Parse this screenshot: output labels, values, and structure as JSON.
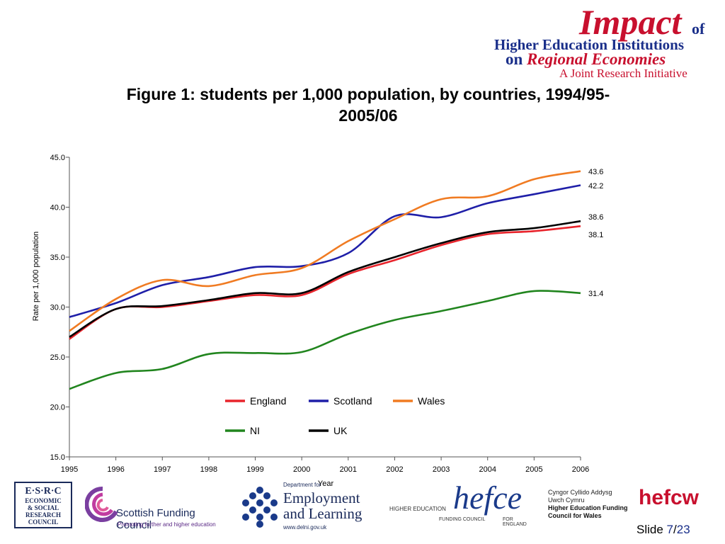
{
  "logo": {
    "main": "Impact",
    "of": "of",
    "line2": "Higher Education Institutions",
    "line3_prefix": "on",
    "line3_main": "Regional Economies",
    "line4": "A Joint Research Initiative"
  },
  "slide": {
    "label": "Slide",
    "current": "7",
    "total": "23",
    "sep": "/"
  },
  "partners": {
    "esrc": [
      "E·S·R·C",
      "ECONOMIC",
      "& SOCIAL",
      "RESEARCH",
      "COUNCIL"
    ],
    "sfc_name": "Scottish Funding Council",
    "sfc_tag": "Promoting further and higher education",
    "del_dept": "Department for",
    "del_name1": "Employment",
    "del_name2": "and Learning",
    "del_url": "www.delni.gov.uk",
    "hefce": "hefce",
    "hefce_s1": "HIGHER EDUCATION",
    "hefce_s2": "FUNDING COUNCIL",
    "hefce_s3": "FOR ENGLAND",
    "hefcw_l1": "Cyngor Cyllido Addysg",
    "hefcw_l2": "Uwch Cymru",
    "hefcw_l3": "Higher Education Funding",
    "hefcw_l4": "Council for Wales",
    "hefcw": "hefcw"
  },
  "chart_data": {
    "type": "line",
    "title": "Figure 1: students per 1,000 population, by countries, 1994/95-2005/06",
    "title_line1": "Figure 1: students per 1,000 population, by countries, 1994/95-",
    "title_line2": "2005/06",
    "xlabel": "Year",
    "ylabel": "Rate per 1,000 population",
    "x": [
      1995,
      1996,
      1997,
      1998,
      1999,
      2000,
      2001,
      2002,
      2003,
      2004,
      2005,
      2006
    ],
    "x_tick_labels": [
      "1995",
      "1996",
      "1997",
      "1998",
      "1999",
      "2000",
      "2001",
      "2002",
      "2003",
      "2004",
      "2005",
      "2006"
    ],
    "ylim": [
      15.0,
      45.0
    ],
    "y_ticks": [
      15.0,
      20.0,
      25.0,
      30.0,
      35.0,
      40.0,
      45.0
    ],
    "y_tick_labels": [
      "15.0",
      "20.0",
      "25.0",
      "30.0",
      "35.0",
      "40.0",
      "45.0"
    ],
    "grid": false,
    "legend_position": "bottom-center",
    "series": [
      {
        "name": "England",
        "color": "#e8242c",
        "values": [
          26.8,
          29.8,
          30.0,
          30.6,
          31.2,
          31.2,
          33.3,
          34.7,
          36.2,
          37.3,
          37.6,
          38.1
        ],
        "end_label": "38.1"
      },
      {
        "name": "Scotland",
        "color": "#1f1fa8",
        "values": [
          29.0,
          30.4,
          32.2,
          33.0,
          34.0,
          34.1,
          35.4,
          39.1,
          39.0,
          40.4,
          41.3,
          42.2
        ],
        "end_label": "42.2"
      },
      {
        "name": "Wales",
        "color": "#f07b22",
        "values": [
          27.6,
          30.8,
          32.7,
          32.1,
          33.2,
          33.9,
          36.6,
          38.8,
          40.8,
          41.1,
          42.8,
          43.6
        ],
        "end_label": "43.6"
      },
      {
        "name": "NI",
        "color": "#21851e",
        "values": [
          21.8,
          23.4,
          23.8,
          25.3,
          25.4,
          25.5,
          27.3,
          28.7,
          29.6,
          30.6,
          31.6,
          31.4
        ],
        "end_label": "31.4"
      },
      {
        "name": "UK",
        "color": "#000000",
        "values": [
          27.0,
          29.8,
          30.1,
          30.7,
          31.4,
          31.4,
          33.5,
          35.0,
          36.4,
          37.5,
          37.9,
          38.6
        ],
        "end_label": "38.6"
      }
    ]
  }
}
